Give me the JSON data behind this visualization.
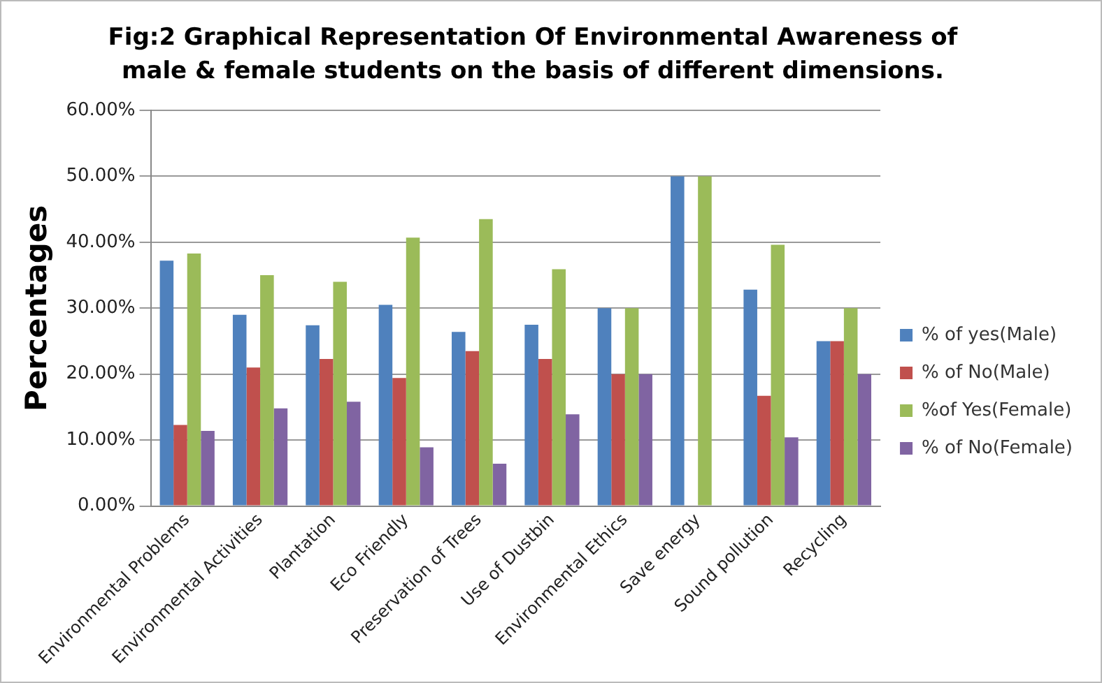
{
  "chart_data": {
    "type": "bar",
    "title": "Fig:2 Graphical Representation Of Environmental Awareness of male & female students on the basis of different dimensions.",
    "ylabel": "Percentages",
    "categories": [
      "Environmental Problems",
      "Environmental Activities",
      "Plantation",
      "Eco Friendly",
      "Preservation of Trees",
      "Use of Dustbin",
      "Environmental Ethics",
      "Save energy",
      "Sound pollution",
      "Recycling"
    ],
    "series": [
      {
        "name": "% of yes(Male)",
        "color": "#4f81bd",
        "values": [
          37.2,
          29,
          27.4,
          30.5,
          26.4,
          27.5,
          30,
          50,
          32.8,
          25
        ]
      },
      {
        "name": "% of No(Male)",
        "color": "#c0504d",
        "values": [
          12.3,
          21,
          22.3,
          19.4,
          23.5,
          22.3,
          20,
          0,
          16.7,
          25
        ]
      },
      {
        "name": "%of Yes(Female)",
        "color": "#9bbb59",
        "values": [
          38.3,
          35,
          34,
          40.7,
          43.5,
          35.9,
          30,
          50,
          39.6,
          30
        ]
      },
      {
        "name": "% of No(Female)",
        "color": "#8064a2",
        "values": [
          11.4,
          14.8,
          15.8,
          8.9,
          6.4,
          13.9,
          20,
          0,
          10.4,
          20
        ]
      }
    ],
    "ylim": [
      0,
      60
    ],
    "yticks": [
      {
        "value": 0,
        "label": "0.00%"
      },
      {
        "value": 10,
        "label": "10.00%"
      },
      {
        "value": 20,
        "label": "20.00%"
      },
      {
        "value": 30,
        "label": "30.00%"
      },
      {
        "value": 40,
        "label": "40.00%"
      },
      {
        "value": 50,
        "label": "50.00%"
      },
      {
        "value": 60,
        "label": "60.00%"
      }
    ],
    "grid": "y",
    "legend": "right"
  }
}
